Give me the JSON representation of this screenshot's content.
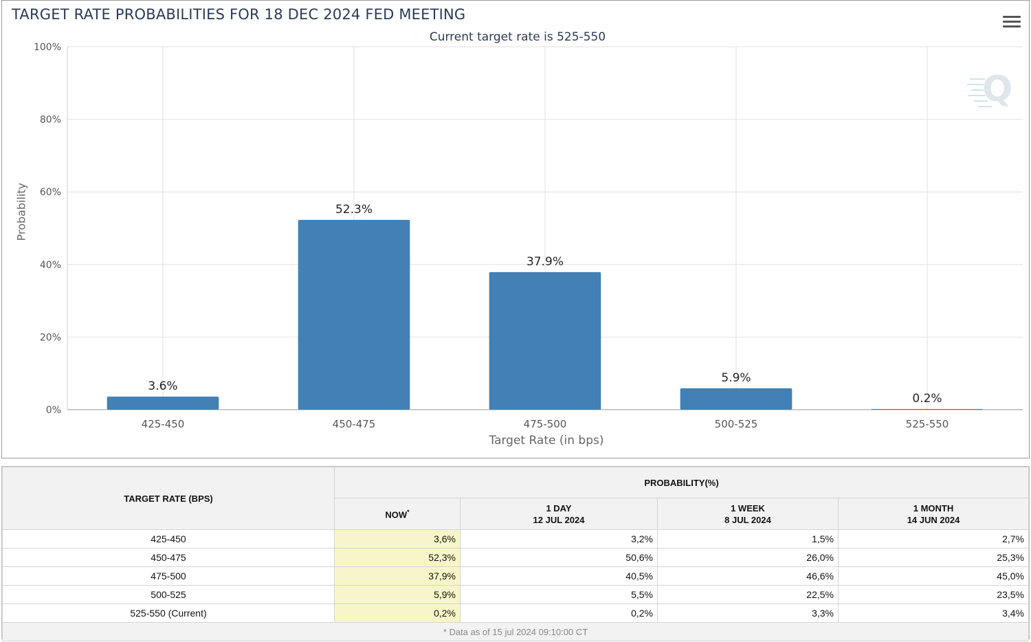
{
  "chart": {
    "title": "TARGET RATE PROBABILITIES FOR 18 DEC 2024 FED MEETING",
    "subtitle": "Current target rate is 525-550",
    "menu_icon": "hamburger-menu-icon",
    "watermark_icon": "q-logo-icon"
  },
  "chart_data": {
    "type": "bar",
    "title": "TARGET RATE PROBABILITIES FOR 18 DEC 2024 FED MEETING",
    "subtitle": "Current target rate is 525-550",
    "xlabel": "Target Rate (in bps)",
    "ylabel": "Probability",
    "categories": [
      "425-450",
      "450-475",
      "475-500",
      "500-525",
      "525-550"
    ],
    "values": [
      3.6,
      52.3,
      37.9,
      5.9,
      0.2
    ],
    "value_labels": [
      "3.6%",
      "52.3%",
      "37.9%",
      "5.9%",
      "0.2%"
    ],
    "ylim": [
      0,
      100
    ],
    "yticks": [
      "0%",
      "20%",
      "40%",
      "60%",
      "80%",
      "100%"
    ],
    "ytick_values": [
      0,
      20,
      40,
      60,
      80,
      100
    ],
    "grid": true,
    "bar_color": "#4280b5"
  },
  "table": {
    "rate_header": "TARGET RATE (BPS)",
    "prob_header": "PROBABILITY(%)",
    "columns": [
      {
        "line1": "NOW",
        "line2": "",
        "star": "*"
      },
      {
        "line1": "1 DAY",
        "line2": "12 JUL 2024",
        "star": ""
      },
      {
        "line1": "1 WEEK",
        "line2": "8 JUL 2024",
        "star": ""
      },
      {
        "line1": "1 MONTH",
        "line2": "14 JUN 2024",
        "star": ""
      }
    ],
    "rows": [
      {
        "rate": "425-450",
        "now": "3,6%",
        "day": "3,2%",
        "week": "1,5%",
        "month": "2,7%"
      },
      {
        "rate": "450-475",
        "now": "52,3%",
        "day": "50,6%",
        "week": "26,0%",
        "month": "25,3%"
      },
      {
        "rate": "475-500",
        "now": "37,9%",
        "day": "40,5%",
        "week": "46,6%",
        "month": "45,0%"
      },
      {
        "rate": "500-525",
        "now": "5,9%",
        "day": "5,5%",
        "week": "22,5%",
        "month": "23,5%"
      },
      {
        "rate": "525-550 (Current)",
        "now": "0,2%",
        "day": "0,2%",
        "week": "3,3%",
        "month": "3,4%"
      }
    ],
    "footnote": "* Data as of 15 jul 2024 09:10:00 CT",
    "now_highlight_color": "#f7f6c8"
  }
}
